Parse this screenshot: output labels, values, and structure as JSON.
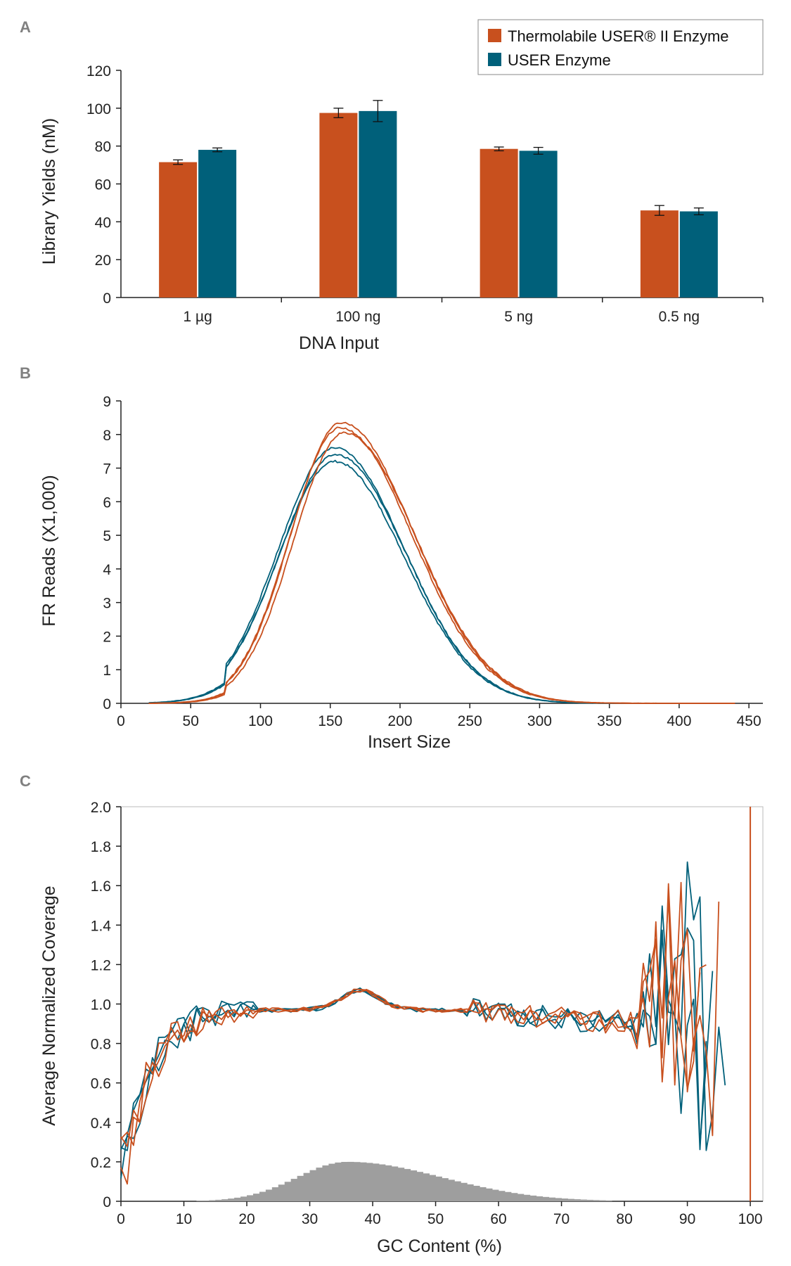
{
  "colors": {
    "thermolabile": "#C8501E",
    "user": "#00607A",
    "axis": "#222222",
    "histogram": "#9E9E9E",
    "panel_label": "#808080"
  },
  "chart_data": [
    {
      "panel": "A",
      "type": "bar",
      "xlabel": "DNA Input",
      "ylabel": "Library Yields (nM)",
      "ylim": [
        0,
        120
      ],
      "yticks": [
        "0",
        "20",
        "40",
        "60",
        "80",
        "100",
        "120"
      ],
      "categories": [
        "1 µg",
        "100 ng",
        "5 ng",
        "0.5 ng"
      ],
      "series": [
        {
          "name": "Thermolabile USER® II Enzyme",
          "values": [
            71.5,
            97.5,
            78.5,
            46
          ],
          "errors": [
            1.2,
            2.5,
            1.0,
            2.6
          ]
        },
        {
          "name": "USER Enzyme",
          "values": [
            78,
            98.5,
            77.5,
            45.5
          ],
          "errors": [
            1.0,
            5.6,
            1.8,
            1.8
          ]
        }
      ],
      "legend": "top-right"
    },
    {
      "panel": "B",
      "type": "line",
      "xlabel": "Insert Size",
      "ylabel": "FR Reads (X1,000)",
      "xlim": [
        0,
        460
      ],
      "ylim": [
        0,
        9
      ],
      "xticks": [
        "0",
        "50",
        "100",
        "150",
        "200",
        "250",
        "300",
        "350",
        "400",
        "450"
      ],
      "yticks": [
        "0",
        "1",
        "2",
        "3",
        "4",
        "5",
        "6",
        "7",
        "8",
        "9"
      ],
      "series": [
        {
          "group": "thermolabile",
          "peak_x": 158,
          "peak_y": 8.35
        },
        {
          "group": "thermolabile",
          "peak_x": 157,
          "peak_y": 8.2
        },
        {
          "group": "thermolabile",
          "peak_x": 160,
          "peak_y": 8.05
        },
        {
          "group": "user",
          "peak_x": 153,
          "peak_y": 7.6
        },
        {
          "group": "user",
          "peak_x": 154,
          "peak_y": 7.4
        },
        {
          "group": "user",
          "peak_x": 153,
          "peak_y": 7.2
        }
      ]
    },
    {
      "panel": "C",
      "type": "line",
      "xlabel": "GC Content (%)",
      "ylabel": "Average Normalized Coverage",
      "xlim": [
        0,
        102
      ],
      "ylim": [
        0,
        2.0
      ],
      "xticks": [
        "0",
        "10",
        "20",
        "30",
        "40",
        "50",
        "60",
        "70",
        "80",
        "90",
        "100"
      ],
      "yticks": [
        "0",
        "0.2",
        "0.4",
        "0.6",
        "0.8",
        "1.0",
        "1.2",
        "1.4",
        "1.6",
        "1.8",
        "2.0"
      ],
      "histogram": {
        "x_start": 8,
        "x_end": 78,
        "peak_x": 36,
        "peak_y": 0.2
      },
      "series": [
        {
          "group": "user",
          "seed": 11,
          "end_x": 94
        },
        {
          "group": "user",
          "seed": 23,
          "end_x": 96
        },
        {
          "group": "user",
          "seed": 37,
          "end_x": 93
        },
        {
          "group": "thermolabile",
          "seed": 41,
          "end_x": 93
        },
        {
          "group": "thermolabile",
          "seed": 53,
          "end_x": 95
        },
        {
          "group": "thermolabile",
          "seed": 67,
          "end_x": 92
        }
      ]
    }
  ]
}
